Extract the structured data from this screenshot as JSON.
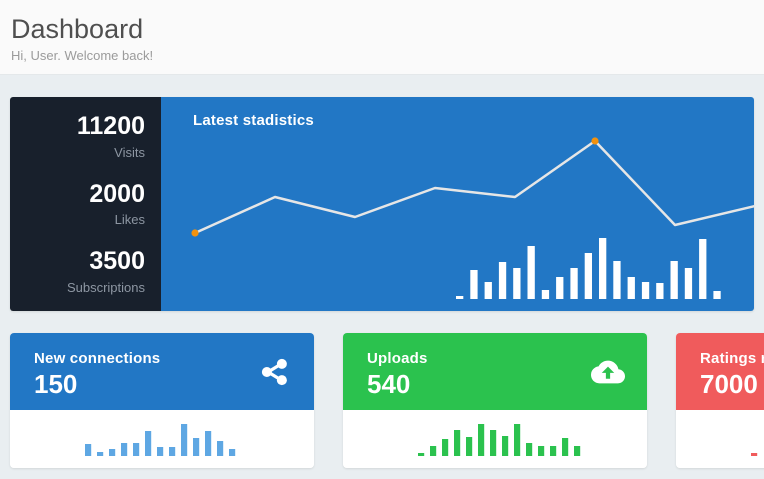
{
  "header": {
    "title": "Dashboard",
    "subtitle": "Hi, User. Welcome back!"
  },
  "stats_panel": {
    "items": [
      {
        "value": "11200",
        "label": "Visits"
      },
      {
        "value": "2000",
        "label": "Likes"
      },
      {
        "value": "3500",
        "label": "Subscriptions"
      }
    ]
  },
  "cards": [
    {
      "label": "New connections",
      "value": "150",
      "icon": "share-icon",
      "header_color": "#2277c5",
      "bar_color": "#5ea7e3"
    },
    {
      "label": "Uploads",
      "value": "540",
      "icon": "cloud-upload-icon",
      "header_color": "#2bc24e",
      "bar_color": "#2bc24e"
    },
    {
      "label": "Ratings rece",
      "value": "7000",
      "icon": "",
      "header_color": "#f05b5c",
      "bar_color": "#f05b5c"
    }
  ],
  "colors": {
    "page_background": "#e9eef1",
    "header_background": "#fafafa",
    "stats_background": "#18202c",
    "primary_blue": "#2277c5",
    "green": "#2bc24e",
    "red": "#f05b5c",
    "orange_marker": "#f3920e",
    "chart_line": "#e6e6e6",
    "chart_bars_white": "#ffffff"
  },
  "chart_data": [
    {
      "id": "main-line",
      "type": "line",
      "title": "Latest stadistics",
      "series": [
        {
          "name": "trend",
          "values": [
            77,
            113,
            93,
            122,
            113,
            169,
            85,
            104
          ]
        }
      ],
      "marker_indices": [
        0,
        5
      ],
      "marker_color": "#f3920e",
      "line_color": "#e6e6e6",
      "axes": "none",
      "note": "sparkline over blue panel; values = height in px above panel bottom (panel height 213)"
    },
    {
      "id": "main-bars",
      "type": "bar",
      "values": [
        3,
        29,
        17,
        37,
        31,
        53,
        9,
        22,
        31,
        46,
        61,
        38,
        22,
        17,
        16,
        38,
        31,
        60,
        8
      ],
      "color": "#ffffff",
      "axes": "none"
    },
    {
      "id": "spark-new-connections",
      "type": "bar",
      "values": [
        12,
        4,
        7,
        13,
        13,
        25,
        9,
        9,
        32,
        18,
        25,
        15,
        7
      ],
      "color": "#5ea7e3",
      "axes": "none"
    },
    {
      "id": "spark-uploads",
      "type": "bar",
      "values": [
        3,
        10,
        17,
        26,
        19,
        32,
        26,
        20,
        32,
        13,
        10,
        10,
        18,
        10
      ],
      "color": "#2bc24e",
      "axes": "none"
    },
    {
      "id": "spark-ratings",
      "type": "bar",
      "values": [
        3
      ],
      "color": "#f05b5c",
      "axes": "none"
    }
  ]
}
